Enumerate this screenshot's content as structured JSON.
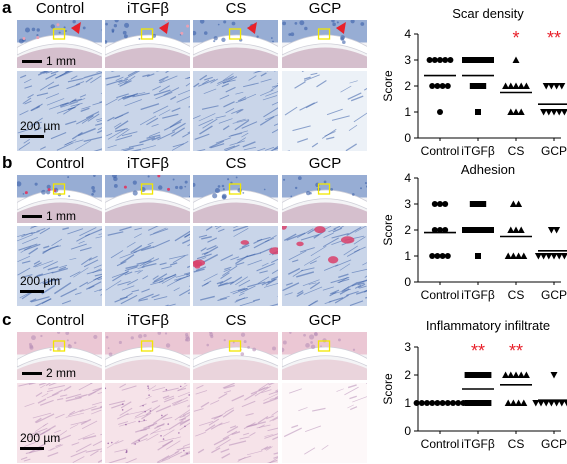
{
  "panels": [
    {
      "letter": "a",
      "columns": [
        "Control",
        "iTGFβ",
        "CS",
        "GCP"
      ],
      "scale_top": "1 mm",
      "scale_bottom": "200 µm",
      "colors": {
        "tissue": "#7896c8",
        "stain": "#3a5fa8",
        "pink": "#e8a0b4"
      }
    },
    {
      "letter": "b",
      "columns": [
        "Control",
        "iTGFβ",
        "CS",
        "GCP"
      ],
      "scale_top": "1 mm",
      "scale_bottom": "200 µm",
      "colors": {
        "tissue": "#7896c8",
        "stain": "#3a5fa8",
        "pink": "#d9406a"
      }
    },
    {
      "letter": "c",
      "columns": [
        "Control",
        "iTGFβ",
        "CS",
        "GCP"
      ],
      "scale_top": "2 mm",
      "scale_bottom": "200 µm",
      "colors": {
        "tissue": "#e8b8c8",
        "stain": "#b88fb8",
        "pink": "#f0c8d4"
      }
    }
  ],
  "chart_data": [
    {
      "type": "scatter",
      "title": "Scar density",
      "ylabel": "Score",
      "categories": [
        "Control",
        "iTGFβ",
        "CS",
        "GCP"
      ],
      "ylim": [
        0,
        4
      ],
      "yticks": [
        0,
        1,
        2,
        3,
        4
      ],
      "markers": [
        "circle",
        "square",
        "triangle-up",
        "triangle-down"
      ],
      "significance": [
        "",
        "",
        "*",
        "**"
      ],
      "significance_color": "#e8202a",
      "series": [
        {
          "values": [
            1,
            2,
            2,
            2,
            2,
            3,
            3,
            3,
            3,
            3
          ],
          "mean": 2.4
        },
        {
          "values": [
            1,
            2,
            2,
            2,
            3,
            3,
            3,
            3,
            3,
            3
          ],
          "mean": 2.4
        },
        {
          "values": [
            1,
            1,
            1,
            2,
            2,
            2,
            2,
            2,
            3
          ],
          "mean": 1.75
        },
        {
          "values": [
            1,
            1,
            1,
            1,
            1,
            2,
            2,
            2,
            2
          ],
          "mean": 1.3
        }
      ]
    },
    {
      "type": "scatter",
      "title": "Adhesion",
      "ylabel": "Score",
      "categories": [
        "Control",
        "iTGFβ",
        "CS",
        "GCP"
      ],
      "ylim": [
        0,
        4
      ],
      "yticks": [
        0,
        1,
        2,
        3,
        4
      ],
      "markers": [
        "circle",
        "square",
        "triangle-up",
        "triangle-down"
      ],
      "significance": [
        "",
        "",
        "",
        ""
      ],
      "significance_color": "#e8202a",
      "series": [
        {
          "values": [
            1,
            1,
            1,
            1,
            2,
            2,
            2,
            3,
            3,
            3
          ],
          "mean": 1.9
        },
        {
          "values": [
            1,
            2,
            2,
            2,
            2,
            2,
            2,
            3,
            3,
            3
          ],
          "mean": 2.0
        },
        {
          "values": [
            1,
            1,
            1,
            1,
            2,
            2,
            2,
            3,
            3
          ],
          "mean": 1.75
        },
        {
          "values": [
            1,
            1,
            1,
            1,
            1,
            1,
            1,
            2,
            2
          ],
          "mean": 1.2
        }
      ]
    },
    {
      "type": "scatter",
      "title": "Inflammatory infiltrate",
      "ylabel": "Score",
      "categories": [
        "Control",
        "iTGFβ",
        "CS",
        "GCP"
      ],
      "ylim": [
        0,
        3
      ],
      "yticks": [
        0,
        1,
        2,
        3
      ],
      "markers": [
        "circle",
        "square",
        "triangle-up",
        "triangle-down"
      ],
      "significance": [
        "",
        "**",
        "**",
        ""
      ],
      "significance_color": "#e8202a",
      "series": [
        {
          "values": [
            1,
            1,
            1,
            1,
            1,
            1,
            1,
            1,
            1,
            1
          ],
          "mean": 1.0
        },
        {
          "values": [
            1,
            1,
            1,
            1,
            1,
            2,
            2,
            2,
            2,
            2
          ],
          "mean": 1.5
        },
        {
          "values": [
            1,
            1,
            1,
            1,
            2,
            2,
            2,
            2,
            2
          ],
          "mean": 1.65
        },
        {
          "values": [
            1,
            1,
            1,
            1,
            1,
            1,
            1,
            1,
            2
          ],
          "mean": 1.1
        }
      ]
    }
  ]
}
